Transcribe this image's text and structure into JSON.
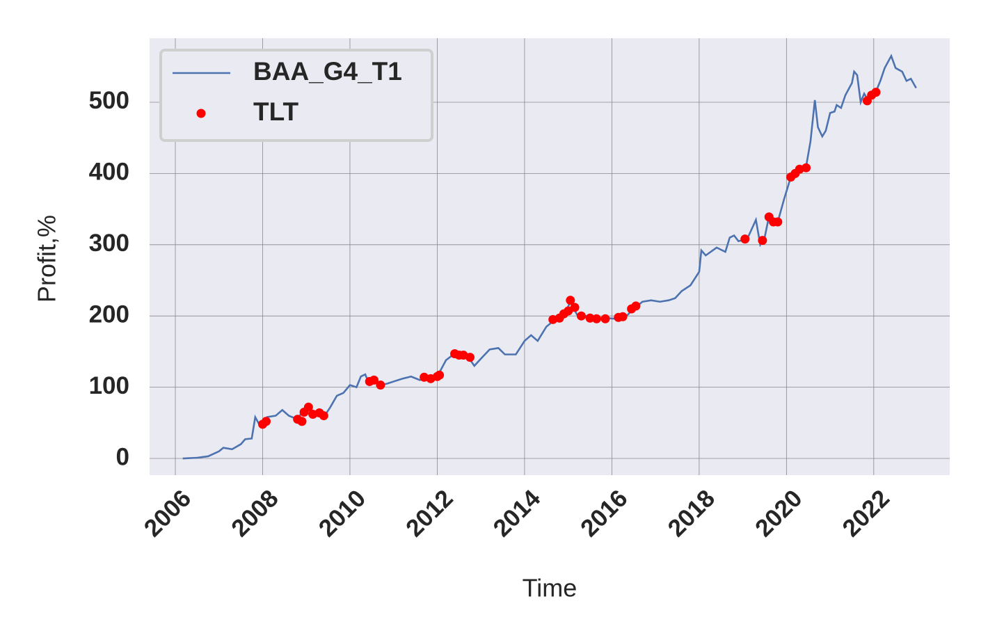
{
  "chart_data": {
    "type": "line",
    "xlabel": "Time",
    "ylabel": "Profit,%",
    "xlim": [
      2005.41,
      2023.74
    ],
    "ylim": [
      -23.4,
      589.8
    ],
    "xticks": [
      2006,
      2008,
      2010,
      2012,
      2014,
      2016,
      2018,
      2020,
      2022
    ],
    "yticks": [
      0,
      100,
      200,
      300,
      400,
      500
    ],
    "grid": true,
    "legend": "upper left",
    "series": [
      {
        "name": "BAA_G4_T1",
        "color": "#4c72b0",
        "type": "line",
        "x": [
          2006.17,
          2006.5,
          2006.75,
          2007.0,
          2007.1,
          2007.3,
          2007.5,
          2007.6,
          2007.75,
          2007.83,
          2007.92,
          2008.0,
          2008.1,
          2008.3,
          2008.45,
          2008.6,
          2008.8,
          2008.95,
          2009.1,
          2009.25,
          2009.4,
          2009.55,
          2009.7,
          2009.85,
          2010.0,
          2010.15,
          2010.25,
          2010.35,
          2010.45,
          2010.55,
          2010.7,
          2010.85,
          2011.0,
          2011.2,
          2011.4,
          2011.6,
          2011.8,
          2012.0,
          2012.2,
          2012.35,
          2012.5,
          2012.7,
          2012.85,
          2013.0,
          2013.2,
          2013.4,
          2013.55,
          2013.8,
          2014.0,
          2014.15,
          2014.3,
          2014.5,
          2014.7,
          2014.9,
          2015.05,
          2015.2,
          2015.4,
          2015.6,
          2015.9,
          2016.1,
          2016.3,
          2016.5,
          2016.7,
          2016.9,
          2017.1,
          2017.3,
          2017.45,
          2017.6,
          2017.8,
          2018.0,
          2018.05,
          2018.15,
          2018.4,
          2018.6,
          2018.7,
          2018.8,
          2018.9,
          2019.1,
          2019.3,
          2019.4,
          2019.5,
          2019.6,
          2019.7,
          2019.8,
          2019.95,
          2020.1,
          2020.25,
          2020.45,
          2020.55,
          2020.65,
          2020.72,
          2020.82,
          2020.9,
          2021.0,
          2021.1,
          2021.15,
          2021.25,
          2021.35,
          2021.5,
          2021.55,
          2021.62,
          2021.7,
          2021.78,
          2021.85,
          2021.95,
          2022.05,
          2022.15,
          2022.25,
          2022.4,
          2022.5,
          2022.65,
          2022.75,
          2022.85,
          2022.97
        ],
        "values": [
          0,
          1,
          3,
          10,
          15,
          13,
          20,
          27,
          28,
          58,
          48,
          50,
          58,
          60,
          68,
          60,
          55,
          70,
          60,
          62,
          58,
          72,
          88,
          92,
          103,
          100,
          115,
          118,
          103,
          108,
          103,
          105,
          108,
          112,
          115,
          110,
          115,
          115,
          138,
          145,
          143,
          143,
          130,
          140,
          153,
          155,
          146,
          146,
          165,
          173,
          165,
          185,
          195,
          200,
          220,
          202,
          200,
          196,
          197,
          196,
          198,
          210,
          220,
          222,
          220,
          222,
          225,
          235,
          243,
          262,
          292,
          285,
          296,
          290,
          310,
          313,
          305,
          308,
          335,
          300,
          310,
          340,
          333,
          332,
          365,
          395,
          405,
          410,
          445,
          503,
          465,
          452,
          460,
          485,
          487,
          496,
          492,
          510,
          527,
          543,
          538,
          500,
          512,
          505,
          512,
          515,
          530,
          548,
          565,
          548,
          543,
          530,
          533,
          520
        ]
      },
      {
        "name": "TLT",
        "color": "#ff0000",
        "type": "scatter",
        "x": [
          2008.0,
          2008.08,
          2008.8,
          2008.9,
          2008.95,
          2009.05,
          2009.15,
          2009.3,
          2009.4,
          2010.45,
          2010.55,
          2010.7,
          2011.7,
          2011.85,
          2012.0,
          2012.05,
          2012.4,
          2012.5,
          2012.6,
          2012.75,
          2014.65,
          2014.8,
          2014.9,
          2015.0,
          2015.05,
          2015.15,
          2015.3,
          2015.5,
          2015.65,
          2015.85,
          2016.15,
          2016.25,
          2016.45,
          2016.55,
          2019.05,
          2019.45,
          2019.6,
          2019.7,
          2019.8,
          2020.1,
          2020.2,
          2020.3,
          2020.45,
          2021.85,
          2021.95,
          2022.05
        ],
        "values": [
          48,
          52,
          55,
          52,
          65,
          72,
          62,
          64,
          60,
          108,
          110,
          103,
          114,
          112,
          115,
          117,
          147,
          145,
          145,
          142,
          195,
          197,
          203,
          207,
          222,
          212,
          200,
          197,
          196,
          196,
          198,
          199,
          210,
          214,
          308,
          306,
          339,
          332,
          332,
          395,
          400,
          406,
          408,
          502,
          510,
          514
        ]
      }
    ]
  }
}
